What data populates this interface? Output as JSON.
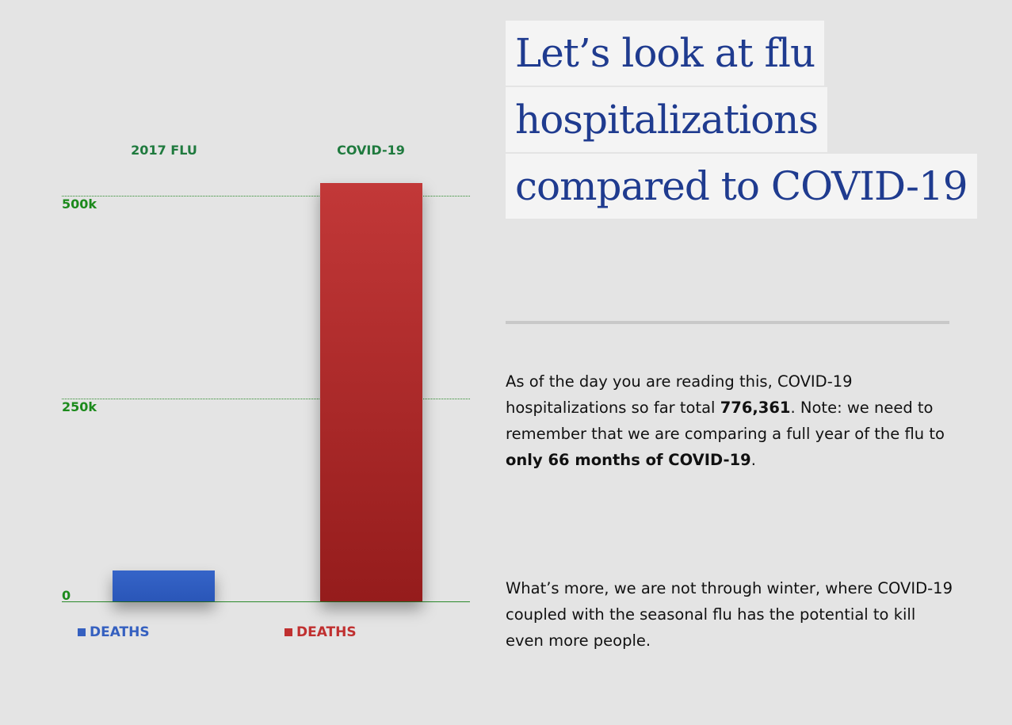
{
  "title_lines": [
    "Let’s look at flu",
    "hospitalizations",
    "compared to COVID-19"
  ],
  "paragraph1": {
    "a": "As of the day you are reading this, COVID-19 hospitalizations so far total ",
    "b": "776,361",
    "c": ". Note: we need to remember that we are comparing a full year of the flu to ",
    "d": "only 66 months of COVID-19",
    "e": "."
  },
  "paragraph2": "What’s more, we are not through winter, where COVID-19 coupled with the seasonal flu has the potential to kill even more people.",
  "chart_data": {
    "type": "bar",
    "categories": [
      "2017 FLU",
      "COVID-19"
    ],
    "series": [
      {
        "name": "DEATHS",
        "values": [
          38000,
          516000
        ],
        "colors": [
          "#2f5fc4",
          "#b02a2a"
        ]
      }
    ],
    "legend": [
      "DEATHS",
      "DEATHS"
    ],
    "yticks": [
      {
        "value": 0,
        "label": "0"
      },
      {
        "value": 250000,
        "label": "250k"
      },
      {
        "value": 500000,
        "label": "500k"
      }
    ],
    "ylim": [
      0,
      500000
    ],
    "grid": true
  }
}
